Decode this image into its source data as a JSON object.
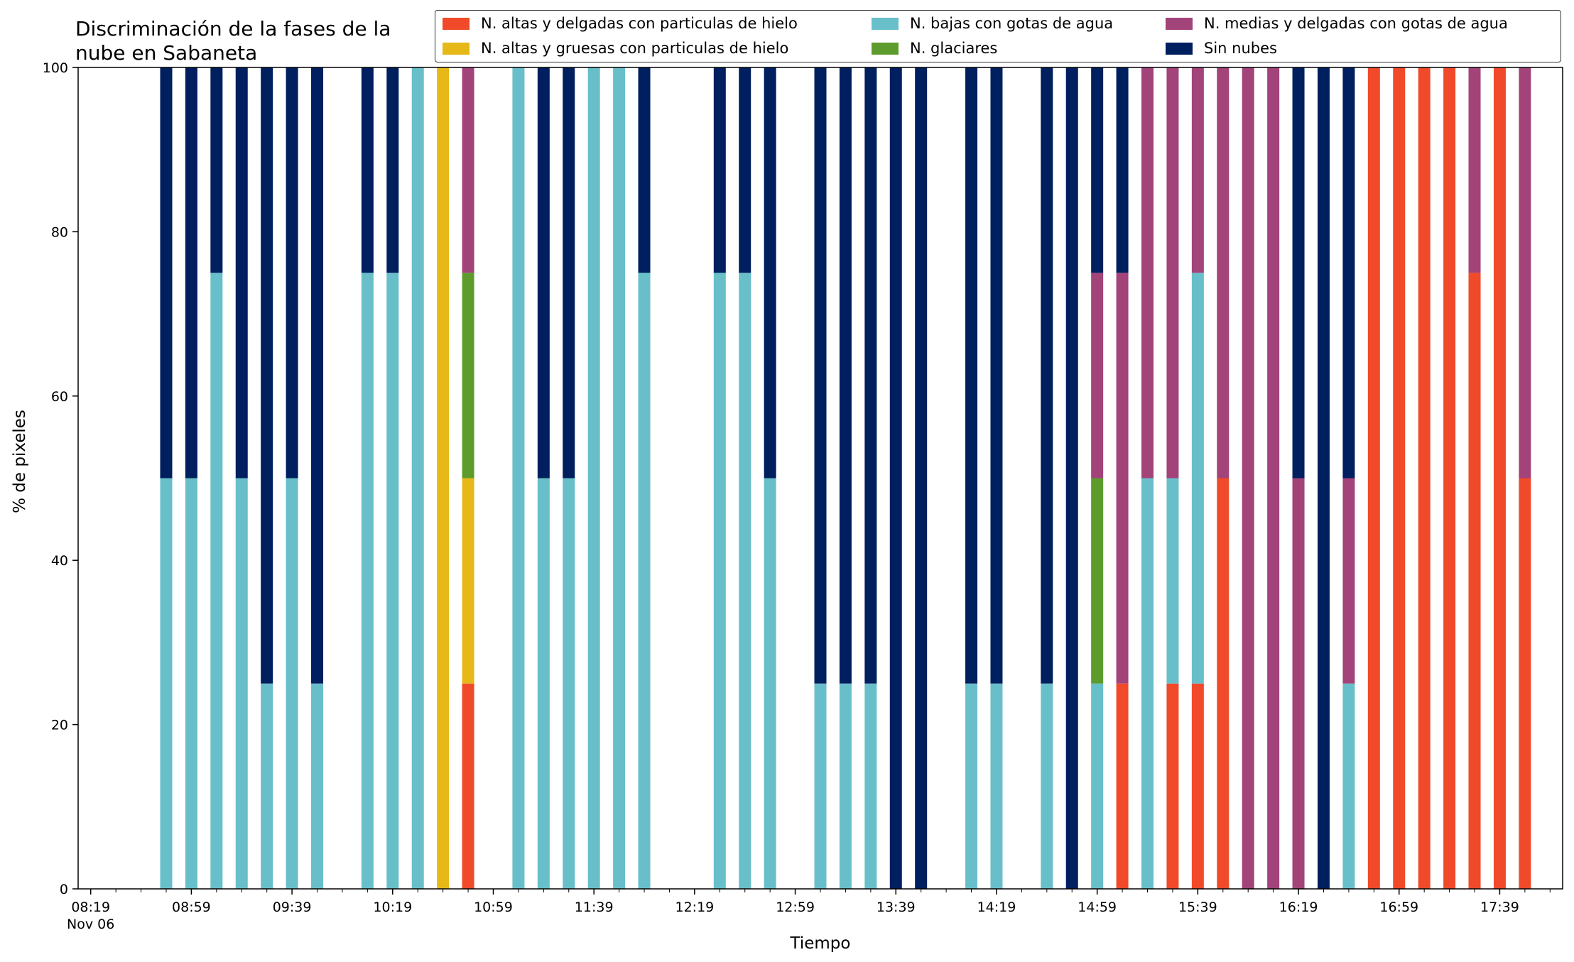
{
  "chart_data": {
    "type": "bar",
    "stacked": true,
    "title": "Discriminación de la fases de la\nnube en Sabaneta",
    "xlabel": "Tiempo",
    "ylabel": "% de pixeles",
    "ylim": [
      0,
      100
    ],
    "yticks": [
      0,
      20,
      40,
      60,
      80,
      100
    ],
    "xlim": [
      "08:14",
      "18:04"
    ],
    "date_label": "Nov 06",
    "xticks": [
      "08:19",
      "08:59",
      "09:39",
      "10:19",
      "10:59",
      "11:39",
      "12:19",
      "12:59",
      "13:39",
      "14:19",
      "14:59",
      "15:39",
      "16:19",
      "16:59",
      "17:39"
    ],
    "legend_position": "top-right",
    "legend_columns": 3,
    "series": [
      {
        "name": "N. altas y delgadas con particulas de hielo",
        "color": "#f04a2a"
      },
      {
        "name": "N. altas y gruesas con particulas de hielo",
        "color": "#e6b818"
      },
      {
        "name": "N. bajas con gotas de agua",
        "color": "#68bfca"
      },
      {
        "name": "N. glaciares",
        "color": "#5d9c2c"
      },
      {
        "name": "N. medias y delgadas con gotas de agua",
        "color": "#a2437a"
      },
      {
        "name": "Sin nubes",
        "color": "#001f5f"
      }
    ],
    "bars": [
      {
        "x": "08:49",
        "values": [
          0,
          0,
          50,
          0,
          0,
          50
        ]
      },
      {
        "x": "08:59",
        "values": [
          0,
          0,
          50,
          0,
          0,
          50
        ]
      },
      {
        "x": "09:09",
        "values": [
          0,
          0,
          75,
          0,
          0,
          25
        ]
      },
      {
        "x": "09:19",
        "values": [
          0,
          0,
          50,
          0,
          0,
          50
        ]
      },
      {
        "x": "09:29",
        "values": [
          0,
          0,
          25,
          0,
          0,
          75
        ]
      },
      {
        "x": "09:39",
        "values": [
          0,
          0,
          50,
          0,
          0,
          50
        ]
      },
      {
        "x": "09:49",
        "values": [
          0,
          0,
          25,
          0,
          0,
          75
        ]
      },
      {
        "x": "10:09",
        "values": [
          0,
          0,
          75,
          0,
          0,
          25
        ]
      },
      {
        "x": "10:19",
        "values": [
          0,
          0,
          75,
          0,
          0,
          25
        ]
      },
      {
        "x": "10:29",
        "values": [
          0,
          0,
          100,
          0,
          0,
          0
        ]
      },
      {
        "x": "10:39",
        "values": [
          0,
          100,
          0,
          0,
          0,
          0
        ]
      },
      {
        "x": "10:49",
        "values": [
          25,
          25,
          0,
          25,
          25,
          0
        ]
      },
      {
        "x": "11:09",
        "values": [
          0,
          0,
          100,
          0,
          0,
          0
        ]
      },
      {
        "x": "11:19",
        "values": [
          0,
          0,
          50,
          0,
          0,
          50
        ]
      },
      {
        "x": "11:29",
        "values": [
          0,
          0,
          50,
          0,
          0,
          50
        ]
      },
      {
        "x": "11:39",
        "values": [
          0,
          0,
          100,
          0,
          0,
          0
        ]
      },
      {
        "x": "11:49",
        "values": [
          0,
          0,
          100,
          0,
          0,
          0
        ]
      },
      {
        "x": "11:59",
        "values": [
          0,
          0,
          75,
          0,
          0,
          25
        ]
      },
      {
        "x": "12:29",
        "values": [
          0,
          0,
          75,
          0,
          0,
          25
        ]
      },
      {
        "x": "12:39",
        "values": [
          0,
          0,
          75,
          0,
          0,
          25
        ]
      },
      {
        "x": "12:49",
        "values": [
          0,
          0,
          50,
          0,
          0,
          50
        ]
      },
      {
        "x": "13:09",
        "values": [
          0,
          0,
          25,
          0,
          0,
          75
        ]
      },
      {
        "x": "13:19",
        "values": [
          0,
          0,
          25,
          0,
          0,
          75
        ]
      },
      {
        "x": "13:29",
        "values": [
          0,
          0,
          25,
          0,
          0,
          75
        ]
      },
      {
        "x": "13:39",
        "values": [
          0,
          0,
          0,
          0,
          0,
          100
        ]
      },
      {
        "x": "13:49",
        "values": [
          0,
          0,
          0,
          0,
          0,
          100
        ]
      },
      {
        "x": "14:09",
        "values": [
          0,
          0,
          25,
          0,
          0,
          75
        ]
      },
      {
        "x": "14:19",
        "values": [
          0,
          0,
          25,
          0,
          0,
          75
        ]
      },
      {
        "x": "14:39",
        "values": [
          0,
          0,
          25,
          0,
          0,
          75
        ]
      },
      {
        "x": "14:49",
        "values": [
          0,
          0,
          0,
          0,
          0,
          100
        ]
      },
      {
        "x": "14:59",
        "values": [
          0,
          0,
          25,
          25,
          25,
          25
        ]
      },
      {
        "x": "15:09",
        "values": [
          25,
          0,
          0,
          0,
          50,
          25
        ]
      },
      {
        "x": "15:19",
        "values": [
          0,
          0,
          50,
          0,
          50,
          0
        ]
      },
      {
        "x": "15:29",
        "values": [
          25,
          0,
          25,
          0,
          50,
          0
        ]
      },
      {
        "x": "15:39",
        "values": [
          25,
          0,
          50,
          0,
          25,
          0
        ]
      },
      {
        "x": "15:49",
        "values": [
          50,
          0,
          0,
          0,
          50,
          0
        ]
      },
      {
        "x": "15:59",
        "values": [
          0,
          0,
          0,
          0,
          100,
          0
        ]
      },
      {
        "x": "16:09",
        "values": [
          0,
          0,
          0,
          0,
          100,
          0
        ]
      },
      {
        "x": "16:19",
        "values": [
          0,
          0,
          0,
          0,
          50,
          50
        ]
      },
      {
        "x": "16:29",
        "values": [
          0,
          0,
          0,
          0,
          0,
          100
        ]
      },
      {
        "x": "16:39",
        "values": [
          0,
          0,
          25,
          0,
          25,
          50
        ]
      },
      {
        "x": "16:49",
        "values": [
          100,
          0,
          0,
          0,
          0,
          0
        ]
      },
      {
        "x": "16:59",
        "values": [
          100,
          0,
          0,
          0,
          0,
          0
        ]
      },
      {
        "x": "17:09",
        "values": [
          100,
          0,
          0,
          0,
          0,
          0
        ]
      },
      {
        "x": "17:19",
        "values": [
          100,
          0,
          0,
          0,
          0,
          0
        ]
      },
      {
        "x": "17:29",
        "values": [
          75,
          0,
          0,
          0,
          25,
          0
        ]
      },
      {
        "x": "17:39",
        "values": [
          100,
          0,
          0,
          0,
          0,
          0
        ]
      },
      {
        "x": "17:49",
        "values": [
          50,
          0,
          0,
          0,
          50,
          0
        ]
      }
    ]
  }
}
